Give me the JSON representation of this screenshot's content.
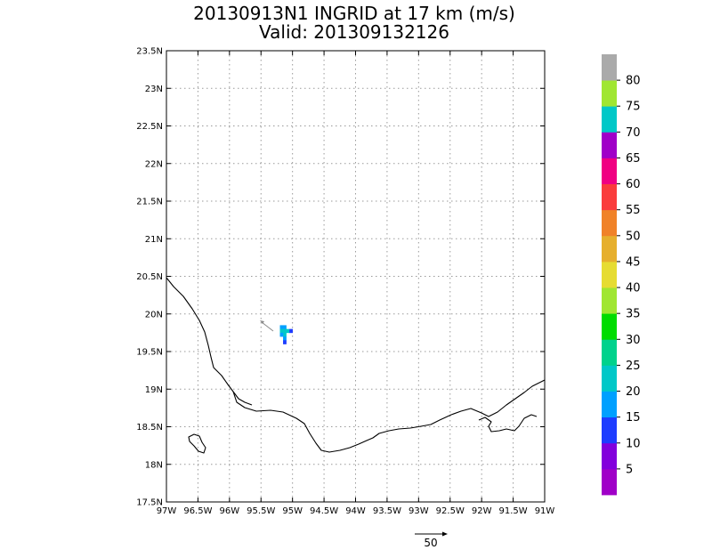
{
  "title": {
    "line1": "20130913N1 INGRID at 17 km (m/s)",
    "line2": "Valid: 201309132126"
  },
  "map": {
    "lon_range": [
      -97,
      -91
    ],
    "lat_range": [
      17.5,
      23.5
    ],
    "x_ticks": [
      "97W",
      "96.5W",
      "96W",
      "95.5W",
      "95W",
      "94.5W",
      "94W",
      "93.5W",
      "93W",
      "92.5W",
      "92W",
      "91.5W",
      "91W"
    ],
    "y_ticks": [
      "17.5N",
      "18N",
      "18.5N",
      "19N",
      "19.5N",
      "20N",
      "20.5N",
      "21N",
      "21.5N",
      "22N",
      "22.5N",
      "23N",
      "23.5N"
    ],
    "grid": true
  },
  "colorbar": {
    "colors": [
      "#a000c8",
      "#8200dc",
      "#1e3cff",
      "#00a0ff",
      "#00c8c8",
      "#00d28c",
      "#00dc00",
      "#a0e632",
      "#e6dc32",
      "#e6af2d",
      "#f08228",
      "#fa3c3c",
      "#f00082",
      "#a000c8",
      "#00c8c8",
      "#a0e632",
      "#aaaaaa"
    ],
    "labels": [
      "5",
      "10",
      "15",
      "20",
      "25",
      "30",
      "35",
      "40",
      "45",
      "50",
      "55",
      "60",
      "65",
      "70",
      "75",
      "80"
    ]
  },
  "wind_cells": [
    {
      "lon": -95.2,
      "lat": 19.8,
      "color": "#00a0ff"
    },
    {
      "lon": -95.15,
      "lat": 19.8,
      "color": "#00a0ff"
    },
    {
      "lon": -95.2,
      "lat": 19.75,
      "color": "#00c8c8"
    },
    {
      "lon": -95.15,
      "lat": 19.75,
      "color": "#00c8c8"
    },
    {
      "lon": -95.1,
      "lat": 19.75,
      "color": "#00c8c8"
    },
    {
      "lon": -95.05,
      "lat": 19.75,
      "color": "#1e3cff"
    },
    {
      "lon": -95.15,
      "lat": 19.7,
      "color": "#00c8c8"
    },
    {
      "lon": -95.2,
      "lat": 19.7,
      "color": "#00a0ff"
    },
    {
      "lon": -95.15,
      "lat": 19.65,
      "color": "#00a0ff"
    },
    {
      "lon": -95.15,
      "lat": 19.6,
      "color": "#1e3cff"
    }
  ],
  "reference_vector": {
    "label": "50"
  }
}
